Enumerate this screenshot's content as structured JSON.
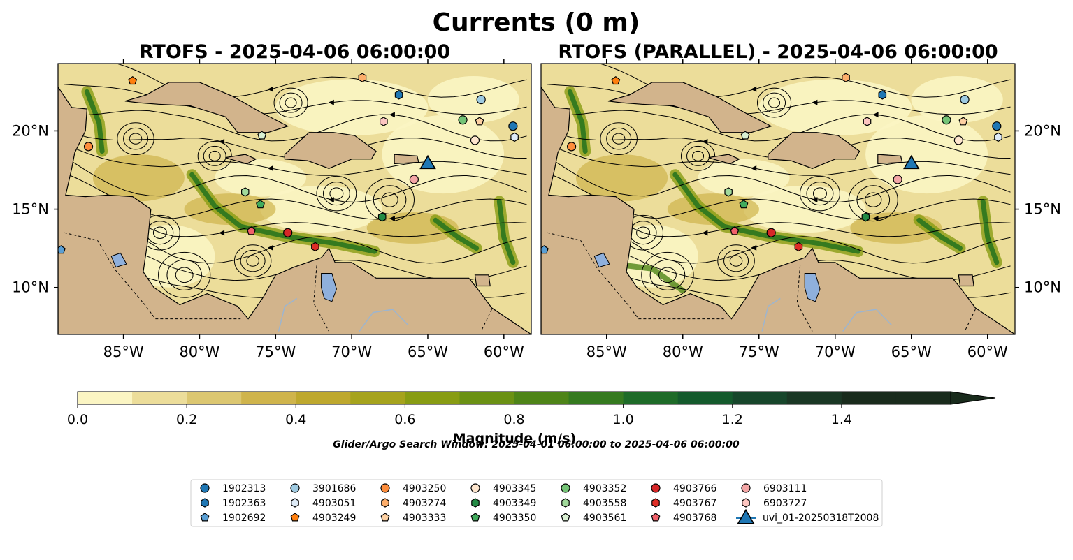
{
  "figure": {
    "suptitle": "Currents (0 m)",
    "search_window": "Glider/Argo Search Window: 2025-04-01 06:00:00 to 2025-04-06 06:00:00"
  },
  "colors": {
    "land": "#d2b48c",
    "lake": "#8fb0dc",
    "river": "#9db5cf",
    "colormap": [
      "#fbf5c3",
      "#ecdd9a",
      "#dcc771",
      "#cfb44c",
      "#bea82e",
      "#a6a31d",
      "#889c13",
      "#6b9114",
      "#4e8418",
      "#357a1f",
      "#1e6b28",
      "#145a2c",
      "#17462b",
      "#1a3724",
      "#192b1c"
    ]
  },
  "chart_data": [
    {
      "type": "heatmap",
      "title": "RTOFS - 2025-04-06 06:00:00",
      "xlim": [
        -89.3,
        -58.2
      ],
      "ylim": [
        7.0,
        24.3
      ],
      "x_ticks": [
        -85,
        -80,
        -75,
        -70,
        -65,
        -60
      ],
      "x_tick_labels": [
        "85°W",
        "80°W",
        "75°W",
        "70°W",
        "65°W",
        "60°W"
      ],
      "y_ticks": [
        10,
        15,
        20
      ],
      "y_tick_labels": [
        "10°N",
        "15°N",
        "20°N"
      ],
      "y_tick_side": "left",
      "variable": "Magnitude (m/s)",
      "observations": [
        {
          "id": "1902313",
          "lon": -59.4,
          "lat": 20.3
        },
        {
          "id": "1902363",
          "lon": -66.9,
          "lat": 22.3
        },
        {
          "id": "1902692",
          "lon": -89.1,
          "lat": 12.4
        },
        {
          "id": "3901686",
          "lon": -61.5,
          "lat": 22.0
        },
        {
          "id": "4903051",
          "lon": -59.3,
          "lat": 19.6
        },
        {
          "id": "4903249",
          "lon": -84.4,
          "lat": 23.2
        },
        {
          "id": "4903250",
          "lon": -87.3,
          "lat": 19.0
        },
        {
          "id": "4903274",
          "lon": -69.3,
          "lat": 23.4
        },
        {
          "id": "4903333",
          "lon": -61.6,
          "lat": 20.6
        },
        {
          "id": "4903345",
          "lon": -61.9,
          "lat": 19.4
        },
        {
          "id": "4903349",
          "lon": -68.0,
          "lat": 14.5
        },
        {
          "id": "4903350",
          "lon": -76.0,
          "lat": 15.3
        },
        {
          "id": "4903352",
          "lon": -62.7,
          "lat": 20.7
        },
        {
          "id": "4903558",
          "lon": -77.0,
          "lat": 16.1
        },
        {
          "id": "4903561",
          "lon": -75.9,
          "lat": 19.7
        },
        {
          "id": "4903766",
          "lon": -74.2,
          "lat": 13.5
        },
        {
          "id": "4903767",
          "lon": -72.4,
          "lat": 12.6
        },
        {
          "id": "4903768",
          "lon": -76.6,
          "lat": 13.6
        },
        {
          "id": "6903111",
          "lon": -65.9,
          "lat": 16.9
        },
        {
          "id": "6903727",
          "lon": -67.9,
          "lat": 20.6
        },
        {
          "id": "uvi_01-20250318T2008",
          "lon": -65.0,
          "lat": 18.0
        }
      ]
    },
    {
      "type": "heatmap",
      "title": "RTOFS (PARALLEL) - 2025-04-06 06:00:00",
      "xlim": [
        -89.3,
        -58.2
      ],
      "ylim": [
        7.0,
        24.3
      ],
      "x_ticks": [
        -85,
        -80,
        -75,
        -70,
        -65,
        -60
      ],
      "x_tick_labels": [
        "85°W",
        "80°W",
        "75°W",
        "70°W",
        "65°W",
        "60°W"
      ],
      "y_ticks": [
        10,
        15,
        20
      ],
      "y_tick_labels": [
        "10°N",
        "15°N",
        "20°N"
      ],
      "y_tick_side": "right",
      "variable": "Magnitude (m/s)",
      "observations": [
        {
          "id": "1902313",
          "lon": -59.4,
          "lat": 20.3
        },
        {
          "id": "1902363",
          "lon": -66.9,
          "lat": 22.3
        },
        {
          "id": "1902692",
          "lon": -89.1,
          "lat": 12.4
        },
        {
          "id": "3901686",
          "lon": -61.5,
          "lat": 22.0
        },
        {
          "id": "4903051",
          "lon": -59.3,
          "lat": 19.6
        },
        {
          "id": "4903249",
          "lon": -84.4,
          "lat": 23.2
        },
        {
          "id": "4903250",
          "lon": -87.3,
          "lat": 19.0
        },
        {
          "id": "4903274",
          "lon": -69.3,
          "lat": 23.4
        },
        {
          "id": "4903333",
          "lon": -61.6,
          "lat": 20.6
        },
        {
          "id": "4903345",
          "lon": -61.9,
          "lat": 19.4
        },
        {
          "id": "4903349",
          "lon": -68.0,
          "lat": 14.5
        },
        {
          "id": "4903350",
          "lon": -76.0,
          "lat": 15.3
        },
        {
          "id": "4903352",
          "lon": -62.7,
          "lat": 20.7
        },
        {
          "id": "4903558",
          "lon": -77.0,
          "lat": 16.1
        },
        {
          "id": "4903561",
          "lon": -75.9,
          "lat": 19.7
        },
        {
          "id": "4903766",
          "lon": -74.2,
          "lat": 13.5
        },
        {
          "id": "4903767",
          "lon": -72.4,
          "lat": 12.6
        },
        {
          "id": "4903768",
          "lon": -76.6,
          "lat": 13.6
        },
        {
          "id": "6903111",
          "lon": -65.9,
          "lat": 16.9
        },
        {
          "id": "6903727",
          "lon": -67.9,
          "lat": 20.6
        },
        {
          "id": "uvi_01-20250318T2008",
          "lon": -65.0,
          "lat": 18.0
        }
      ]
    }
  ],
  "colorbar": {
    "label": "Magnitude (m/s)",
    "vmin": 0.0,
    "vmax": 1.6,
    "step": 0.1,
    "extend": "max",
    "ticks": [
      0.0,
      0.2,
      0.4,
      0.6,
      0.8,
      1.0,
      1.2,
      1.4
    ],
    "tick_labels": [
      "0.0",
      "0.2",
      "0.4",
      "0.6",
      "0.8",
      "1.0",
      "1.2",
      "1.4"
    ]
  },
  "legend": {
    "placement": "bottom-center",
    "ncol": 7,
    "entries": [
      {
        "label": "1902313",
        "marker": "circle",
        "color": "#1f77b4"
      },
      {
        "label": "1902363",
        "marker": "hexagon",
        "color": "#1f77b4"
      },
      {
        "label": "1902692",
        "marker": "pentagon",
        "color": "#5a9fd4"
      },
      {
        "label": "3901686",
        "marker": "circle",
        "color": "#9ecae1"
      },
      {
        "label": "4903051",
        "marker": "hexagon",
        "color": "#deebf7"
      },
      {
        "label": "4903249",
        "marker": "pentagon",
        "color": "#ff7f0e"
      },
      {
        "label": "4903250",
        "marker": "circle",
        "color": "#fd8d3c"
      },
      {
        "label": "4903274",
        "marker": "hexagon",
        "color": "#fdae6b"
      },
      {
        "label": "4903333",
        "marker": "pentagon",
        "color": "#fdd0a2"
      },
      {
        "label": "4903345",
        "marker": "circle",
        "color": "#fee6ce"
      },
      {
        "label": "4903349",
        "marker": "hexagon",
        "color": "#238b45"
      },
      {
        "label": "4903350",
        "marker": "pentagon",
        "color": "#41ab5d"
      },
      {
        "label": "4903352",
        "marker": "circle",
        "color": "#74c476"
      },
      {
        "label": "4903558",
        "marker": "hexagon",
        "color": "#a1d99b"
      },
      {
        "label": "4903561",
        "marker": "pentagon",
        "color": "#d9f0d3"
      },
      {
        "label": "4903766",
        "marker": "circle",
        "color": "#d62728"
      },
      {
        "label": "4903767",
        "marker": "hexagon",
        "color": "#de2d26"
      },
      {
        "label": "4903768",
        "marker": "pentagon",
        "color": "#f0606a"
      },
      {
        "label": "6903111",
        "marker": "circle",
        "color": "#f4a6a6"
      },
      {
        "label": "6903727",
        "marker": "hexagon",
        "color": "#fcc5c0"
      },
      {
        "label": "uvi_01-20250318T2008",
        "marker": "triangle",
        "color": "#1f77b4"
      }
    ]
  }
}
